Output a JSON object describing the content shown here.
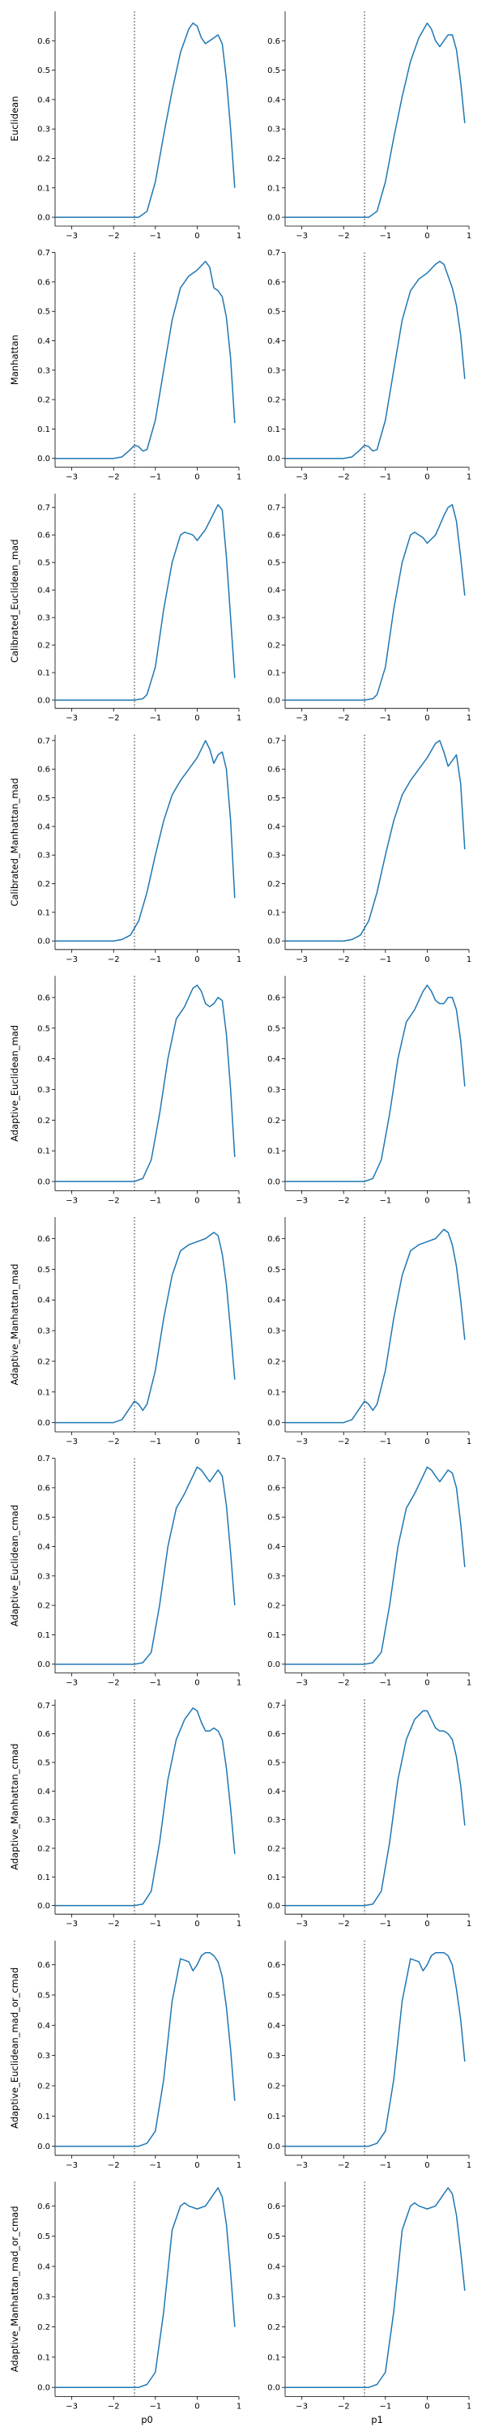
{
  "style": {
    "line_color": "#1f77b4",
    "axis_color": "#000000",
    "ref_line_color": "#000000"
  },
  "column_labels": [
    "p0",
    "p1"
  ],
  "x_axis": {
    "lim": [
      -3.4,
      1.0
    ],
    "ticks": [
      -3,
      -2,
      -1,
      0,
      1
    ]
  },
  "reference_line_x": -1.5,
  "chart_data": [
    {
      "type": "line",
      "row": 0,
      "col": 0,
      "ylabel": "Euclidean",
      "ylim": [
        -0.03,
        0.7
      ],
      "yticks": [
        0.0,
        0.1,
        0.2,
        0.3,
        0.4,
        0.5,
        0.6
      ],
      "x": [
        -3.4,
        -1.4,
        -1.2,
        -1.0,
        -0.8,
        -0.6,
        -0.4,
        -0.2,
        -0.1,
        0.0,
        0.1,
        0.2,
        0.3,
        0.4,
        0.5,
        0.6,
        0.7,
        0.8,
        0.9
      ],
      "y": [
        0.0,
        0.0,
        0.02,
        0.12,
        0.28,
        0.43,
        0.56,
        0.64,
        0.66,
        0.65,
        0.61,
        0.59,
        0.6,
        0.61,
        0.62,
        0.59,
        0.47,
        0.3,
        0.1
      ]
    },
    {
      "type": "line",
      "row": 0,
      "col": 1,
      "ylim": [
        -0.03,
        0.7
      ],
      "yticks": [
        0.0,
        0.1,
        0.2,
        0.3,
        0.4,
        0.5,
        0.6
      ],
      "x": [
        -3.4,
        -1.4,
        -1.2,
        -1.0,
        -0.8,
        -0.6,
        -0.4,
        -0.2,
        0.0,
        0.1,
        0.2,
        0.3,
        0.4,
        0.5,
        0.6,
        0.7,
        0.8,
        0.9
      ],
      "y": [
        0.0,
        0.0,
        0.02,
        0.12,
        0.27,
        0.41,
        0.53,
        0.61,
        0.66,
        0.64,
        0.6,
        0.58,
        0.6,
        0.62,
        0.62,
        0.57,
        0.46,
        0.32
      ]
    },
    {
      "type": "line",
      "row": 1,
      "col": 0,
      "ylabel": "Manhattan",
      "ylim": [
        -0.03,
        0.7
      ],
      "yticks": [
        0.0,
        0.1,
        0.2,
        0.3,
        0.4,
        0.5,
        0.6,
        0.7
      ],
      "x": [
        -3.4,
        -2.0,
        -1.8,
        -1.6,
        -1.5,
        -1.4,
        -1.3,
        -1.2,
        -1.0,
        -0.8,
        -0.6,
        -0.4,
        -0.2,
        0.0,
        0.2,
        0.3,
        0.4,
        0.5,
        0.6,
        0.7,
        0.8,
        0.9
      ],
      "y": [
        0.0,
        0.0,
        0.005,
        0.03,
        0.045,
        0.04,
        0.025,
        0.03,
        0.13,
        0.3,
        0.47,
        0.58,
        0.62,
        0.64,
        0.67,
        0.65,
        0.58,
        0.57,
        0.55,
        0.48,
        0.34,
        0.12
      ]
    },
    {
      "type": "line",
      "row": 1,
      "col": 1,
      "ylim": [
        -0.03,
        0.7
      ],
      "yticks": [
        0.0,
        0.1,
        0.2,
        0.3,
        0.4,
        0.5,
        0.6,
        0.7
      ],
      "x": [
        -3.4,
        -2.0,
        -1.8,
        -1.6,
        -1.5,
        -1.4,
        -1.3,
        -1.2,
        -1.0,
        -0.8,
        -0.6,
        -0.4,
        -0.2,
        0.0,
        0.2,
        0.3,
        0.4,
        0.5,
        0.6,
        0.7,
        0.8,
        0.9
      ],
      "y": [
        0.0,
        0.0,
        0.005,
        0.03,
        0.045,
        0.04,
        0.025,
        0.03,
        0.13,
        0.3,
        0.47,
        0.57,
        0.61,
        0.63,
        0.66,
        0.67,
        0.66,
        0.62,
        0.58,
        0.52,
        0.42,
        0.27
      ]
    },
    {
      "type": "line",
      "row": 2,
      "col": 0,
      "ylabel": "Calibrated_Euclidean_mad",
      "ylim": [
        -0.03,
        0.75
      ],
      "yticks": [
        0.0,
        0.1,
        0.2,
        0.3,
        0.4,
        0.5,
        0.6,
        0.7
      ],
      "x": [
        -3.4,
        -1.5,
        -1.3,
        -1.2,
        -1.0,
        -0.8,
        -0.6,
        -0.4,
        -0.3,
        -0.1,
        0.0,
        0.2,
        0.4,
        0.5,
        0.6,
        0.7,
        0.8,
        0.9
      ],
      "y": [
        0.0,
        0.0,
        0.005,
        0.02,
        0.12,
        0.33,
        0.5,
        0.6,
        0.61,
        0.6,
        0.58,
        0.62,
        0.68,
        0.71,
        0.69,
        0.52,
        0.3,
        0.08
      ]
    },
    {
      "type": "line",
      "row": 2,
      "col": 1,
      "ylim": [
        -0.03,
        0.75
      ],
      "yticks": [
        0.0,
        0.1,
        0.2,
        0.3,
        0.4,
        0.5,
        0.6,
        0.7
      ],
      "x": [
        -3.4,
        -1.5,
        -1.3,
        -1.2,
        -1.0,
        -0.8,
        -0.6,
        -0.4,
        -0.3,
        -0.1,
        0.0,
        0.2,
        0.4,
        0.5,
        0.6,
        0.7,
        0.8,
        0.9
      ],
      "y": [
        0.0,
        0.0,
        0.005,
        0.02,
        0.12,
        0.33,
        0.5,
        0.6,
        0.61,
        0.59,
        0.57,
        0.6,
        0.67,
        0.7,
        0.71,
        0.65,
        0.52,
        0.38
      ]
    },
    {
      "type": "line",
      "row": 3,
      "col": 0,
      "ylabel": "Calibrated_Manhattan_mad",
      "ylim": [
        -0.03,
        0.72
      ],
      "yticks": [
        0.0,
        0.1,
        0.2,
        0.3,
        0.4,
        0.5,
        0.6,
        0.7
      ],
      "x": [
        -3.4,
        -2.0,
        -1.8,
        -1.6,
        -1.4,
        -1.2,
        -1.0,
        -0.8,
        -0.6,
        -0.4,
        -0.2,
        0.0,
        0.2,
        0.3,
        0.4,
        0.5,
        0.6,
        0.7,
        0.8,
        0.9
      ],
      "y": [
        0.0,
        0.0,
        0.005,
        0.02,
        0.07,
        0.17,
        0.3,
        0.42,
        0.51,
        0.56,
        0.6,
        0.64,
        0.7,
        0.67,
        0.62,
        0.65,
        0.66,
        0.6,
        0.42,
        0.15
      ]
    },
    {
      "type": "line",
      "row": 3,
      "col": 1,
      "ylim": [
        -0.03,
        0.72
      ],
      "yticks": [
        0.0,
        0.1,
        0.2,
        0.3,
        0.4,
        0.5,
        0.6,
        0.7
      ],
      "x": [
        -3.4,
        -2.0,
        -1.8,
        -1.6,
        -1.4,
        -1.2,
        -1.0,
        -0.8,
        -0.6,
        -0.4,
        -0.2,
        0.0,
        0.2,
        0.3,
        0.4,
        0.5,
        0.6,
        0.7,
        0.8,
        0.9
      ],
      "y": [
        0.0,
        0.0,
        0.005,
        0.02,
        0.07,
        0.17,
        0.3,
        0.42,
        0.51,
        0.56,
        0.6,
        0.64,
        0.69,
        0.7,
        0.66,
        0.61,
        0.63,
        0.65,
        0.55,
        0.32
      ]
    },
    {
      "type": "line",
      "row": 4,
      "col": 0,
      "ylabel": "Adaptive_Euclidean_mad",
      "ylim": [
        -0.03,
        0.67
      ],
      "yticks": [
        0.0,
        0.1,
        0.2,
        0.3,
        0.4,
        0.5,
        0.6
      ],
      "x": [
        -3.4,
        -1.5,
        -1.3,
        -1.1,
        -0.9,
        -0.7,
        -0.5,
        -0.3,
        -0.1,
        0.0,
        0.1,
        0.2,
        0.3,
        0.4,
        0.5,
        0.6,
        0.7,
        0.8,
        0.9
      ],
      "y": [
        0.0,
        0.0,
        0.01,
        0.07,
        0.22,
        0.4,
        0.53,
        0.57,
        0.63,
        0.64,
        0.62,
        0.58,
        0.57,
        0.58,
        0.6,
        0.59,
        0.48,
        0.3,
        0.08
      ]
    },
    {
      "type": "line",
      "row": 4,
      "col": 1,
      "ylim": [
        -0.03,
        0.67
      ],
      "yticks": [
        0.0,
        0.1,
        0.2,
        0.3,
        0.4,
        0.5,
        0.6
      ],
      "x": [
        -3.4,
        -1.5,
        -1.3,
        -1.1,
        -0.9,
        -0.7,
        -0.5,
        -0.3,
        -0.1,
        0.0,
        0.1,
        0.2,
        0.3,
        0.4,
        0.5,
        0.6,
        0.7,
        0.8,
        0.9
      ],
      "y": [
        0.0,
        0.0,
        0.01,
        0.07,
        0.22,
        0.4,
        0.52,
        0.56,
        0.62,
        0.64,
        0.62,
        0.59,
        0.58,
        0.58,
        0.6,
        0.6,
        0.56,
        0.46,
        0.31
      ]
    },
    {
      "type": "line",
      "row": 5,
      "col": 0,
      "ylabel": "Adaptive_Manhattan_mad",
      "ylim": [
        -0.03,
        0.67
      ],
      "yticks": [
        0.0,
        0.1,
        0.2,
        0.3,
        0.4,
        0.5,
        0.6
      ],
      "x": [
        -3.4,
        -2.0,
        -1.8,
        -1.6,
        -1.5,
        -1.4,
        -1.3,
        -1.2,
        -1.0,
        -0.8,
        -0.6,
        -0.4,
        -0.2,
        0.0,
        0.2,
        0.4,
        0.5,
        0.6,
        0.7,
        0.8,
        0.9
      ],
      "y": [
        0.0,
        0.0,
        0.01,
        0.05,
        0.07,
        0.06,
        0.04,
        0.06,
        0.17,
        0.34,
        0.48,
        0.56,
        0.58,
        0.59,
        0.6,
        0.62,
        0.61,
        0.55,
        0.45,
        0.3,
        0.14
      ]
    },
    {
      "type": "line",
      "row": 5,
      "col": 1,
      "ylim": [
        -0.03,
        0.67
      ],
      "yticks": [
        0.0,
        0.1,
        0.2,
        0.3,
        0.4,
        0.5,
        0.6
      ],
      "x": [
        -3.4,
        -2.0,
        -1.8,
        -1.6,
        -1.5,
        -1.4,
        -1.3,
        -1.2,
        -1.0,
        -0.8,
        -0.6,
        -0.4,
        -0.2,
        0.0,
        0.2,
        0.4,
        0.5,
        0.6,
        0.7,
        0.8,
        0.9
      ],
      "y": [
        0.0,
        0.0,
        0.01,
        0.05,
        0.07,
        0.06,
        0.04,
        0.06,
        0.17,
        0.34,
        0.48,
        0.56,
        0.58,
        0.59,
        0.6,
        0.63,
        0.62,
        0.58,
        0.51,
        0.4,
        0.27
      ]
    },
    {
      "type": "line",
      "row": 6,
      "col": 0,
      "ylabel": "Adaptive_Euclidean_cmad",
      "ylim": [
        -0.03,
        0.7
      ],
      "yticks": [
        0.0,
        0.1,
        0.2,
        0.3,
        0.4,
        0.5,
        0.6,
        0.7
      ],
      "x": [
        -3.4,
        -1.5,
        -1.3,
        -1.1,
        -0.9,
        -0.7,
        -0.5,
        -0.3,
        -0.1,
        0.0,
        0.1,
        0.2,
        0.3,
        0.4,
        0.5,
        0.6,
        0.7,
        0.8,
        0.9
      ],
      "y": [
        0.0,
        0.0,
        0.005,
        0.04,
        0.2,
        0.4,
        0.53,
        0.58,
        0.64,
        0.67,
        0.66,
        0.64,
        0.62,
        0.64,
        0.66,
        0.64,
        0.54,
        0.38,
        0.2
      ]
    },
    {
      "type": "line",
      "row": 6,
      "col": 1,
      "ylim": [
        -0.03,
        0.7
      ],
      "yticks": [
        0.0,
        0.1,
        0.2,
        0.3,
        0.4,
        0.5,
        0.6,
        0.7
      ],
      "x": [
        -3.4,
        -1.5,
        -1.3,
        -1.1,
        -0.9,
        -0.7,
        -0.5,
        -0.3,
        -0.1,
        0.0,
        0.1,
        0.2,
        0.3,
        0.4,
        0.5,
        0.6,
        0.7,
        0.8,
        0.9
      ],
      "y": [
        0.0,
        0.0,
        0.005,
        0.04,
        0.2,
        0.4,
        0.53,
        0.58,
        0.64,
        0.67,
        0.66,
        0.64,
        0.62,
        0.64,
        0.66,
        0.65,
        0.6,
        0.48,
        0.33
      ]
    },
    {
      "type": "line",
      "row": 7,
      "col": 0,
      "ylabel": "Adaptive_Manhattan_cmad",
      "ylim": [
        -0.03,
        0.72
      ],
      "yticks": [
        0.0,
        0.1,
        0.2,
        0.3,
        0.4,
        0.5,
        0.6,
        0.7
      ],
      "x": [
        -3.4,
        -1.5,
        -1.3,
        -1.1,
        -0.9,
        -0.7,
        -0.5,
        -0.3,
        -0.1,
        0.0,
        0.1,
        0.2,
        0.3,
        0.4,
        0.5,
        0.6,
        0.7,
        0.8,
        0.9
      ],
      "y": [
        0.0,
        0.0,
        0.005,
        0.05,
        0.22,
        0.44,
        0.58,
        0.65,
        0.69,
        0.68,
        0.64,
        0.61,
        0.61,
        0.62,
        0.61,
        0.58,
        0.48,
        0.34,
        0.18
      ]
    },
    {
      "type": "line",
      "row": 7,
      "col": 1,
      "ylim": [
        -0.03,
        0.72
      ],
      "yticks": [
        0.0,
        0.1,
        0.2,
        0.3,
        0.4,
        0.5,
        0.6,
        0.7
      ],
      "x": [
        -3.4,
        -1.5,
        -1.3,
        -1.1,
        -0.9,
        -0.7,
        -0.5,
        -0.3,
        -0.1,
        0.0,
        0.1,
        0.2,
        0.3,
        0.4,
        0.5,
        0.6,
        0.7,
        0.8,
        0.9
      ],
      "y": [
        0.0,
        0.0,
        0.005,
        0.05,
        0.22,
        0.44,
        0.58,
        0.65,
        0.68,
        0.68,
        0.65,
        0.62,
        0.61,
        0.61,
        0.6,
        0.58,
        0.52,
        0.42,
        0.28
      ]
    },
    {
      "type": "line",
      "row": 8,
      "col": 0,
      "ylabel": "Adaptive_Euclidean_mad_or_cmad",
      "ylim": [
        -0.03,
        0.68
      ],
      "yticks": [
        0.0,
        0.1,
        0.2,
        0.3,
        0.4,
        0.5,
        0.6
      ],
      "x": [
        -3.4,
        -1.4,
        -1.2,
        -1.0,
        -0.8,
        -0.6,
        -0.4,
        -0.2,
        -0.1,
        0.0,
        0.1,
        0.2,
        0.3,
        0.4,
        0.5,
        0.6,
        0.7,
        0.8,
        0.9
      ],
      "y": [
        0.0,
        0.0,
        0.01,
        0.05,
        0.22,
        0.48,
        0.62,
        0.61,
        0.58,
        0.6,
        0.63,
        0.64,
        0.64,
        0.63,
        0.61,
        0.56,
        0.46,
        0.32,
        0.15
      ]
    },
    {
      "type": "line",
      "row": 8,
      "col": 1,
      "ylim": [
        -0.03,
        0.68
      ],
      "yticks": [
        0.0,
        0.1,
        0.2,
        0.3,
        0.4,
        0.5,
        0.6
      ],
      "x": [
        -3.4,
        -1.4,
        -1.2,
        -1.0,
        -0.8,
        -0.6,
        -0.4,
        -0.2,
        -0.1,
        0.0,
        0.1,
        0.2,
        0.3,
        0.4,
        0.5,
        0.6,
        0.7,
        0.8,
        0.9
      ],
      "y": [
        0.0,
        0.0,
        0.01,
        0.05,
        0.22,
        0.48,
        0.62,
        0.61,
        0.58,
        0.6,
        0.63,
        0.64,
        0.64,
        0.64,
        0.63,
        0.6,
        0.52,
        0.42,
        0.28
      ]
    },
    {
      "type": "line",
      "row": 9,
      "col": 0,
      "ylabel": "Adaptive_Manhattan_mad_or_cmad",
      "ylim": [
        -0.03,
        0.68
      ],
      "yticks": [
        0.0,
        0.1,
        0.2,
        0.3,
        0.4,
        0.5,
        0.6
      ],
      "x": [
        -3.4,
        -1.4,
        -1.2,
        -1.0,
        -0.8,
        -0.6,
        -0.4,
        -0.3,
        -0.2,
        0.0,
        0.2,
        0.4,
        0.5,
        0.6,
        0.7,
        0.8,
        0.9
      ],
      "y": [
        0.0,
        0.0,
        0.01,
        0.05,
        0.25,
        0.52,
        0.6,
        0.61,
        0.6,
        0.59,
        0.6,
        0.64,
        0.66,
        0.63,
        0.54,
        0.38,
        0.2
      ]
    },
    {
      "type": "line",
      "row": 9,
      "col": 1,
      "ylim": [
        -0.03,
        0.68
      ],
      "yticks": [
        0.0,
        0.1,
        0.2,
        0.3,
        0.4,
        0.5,
        0.6
      ],
      "x": [
        -3.4,
        -1.4,
        -1.2,
        -1.0,
        -0.8,
        -0.6,
        -0.4,
        -0.3,
        -0.2,
        0.0,
        0.2,
        0.4,
        0.5,
        0.6,
        0.7,
        0.8,
        0.9
      ],
      "y": [
        0.0,
        0.0,
        0.01,
        0.05,
        0.25,
        0.52,
        0.6,
        0.61,
        0.6,
        0.59,
        0.6,
        0.64,
        0.66,
        0.64,
        0.57,
        0.45,
        0.32
      ]
    }
  ]
}
